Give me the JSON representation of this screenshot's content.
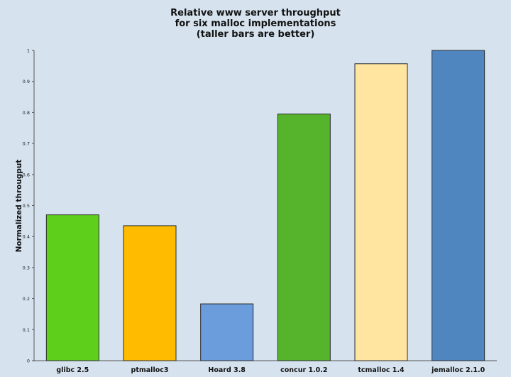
{
  "chart_data": {
    "type": "bar",
    "title": [
      "Relative www server throughput",
      "for six malloc implementations",
      "(taller bars are better)"
    ],
    "xlabel": "",
    "ylabel": "Normalized througput",
    "ylim": [
      0,
      1
    ],
    "yticks": [
      "0",
      "0.1",
      "0.2",
      "0.3",
      "0.4",
      "0.5",
      "0.6",
      "0.7",
      "0.8",
      "0.9",
      "1"
    ],
    "ytick_values": [
      0,
      0.1,
      0.2,
      0.3,
      0.4,
      0.5,
      0.6,
      0.7,
      0.8,
      0.9,
      1
    ],
    "categories": [
      "glibc 2.5",
      "ptmalloc3",
      "Hoard 3.8",
      "concur 1.0.2",
      "tcmalloc 1.4",
      "jemalloc 2.1.0"
    ],
    "values": [
      0.47,
      0.435,
      0.183,
      0.795,
      0.957,
      1.0
    ],
    "colors": [
      "#5ecf1a",
      "#ffbb00",
      "#6b9cdc",
      "#56b42c",
      "#ffe5a0",
      "#4f86c0"
    ],
    "grid": false,
    "legend": "none"
  }
}
